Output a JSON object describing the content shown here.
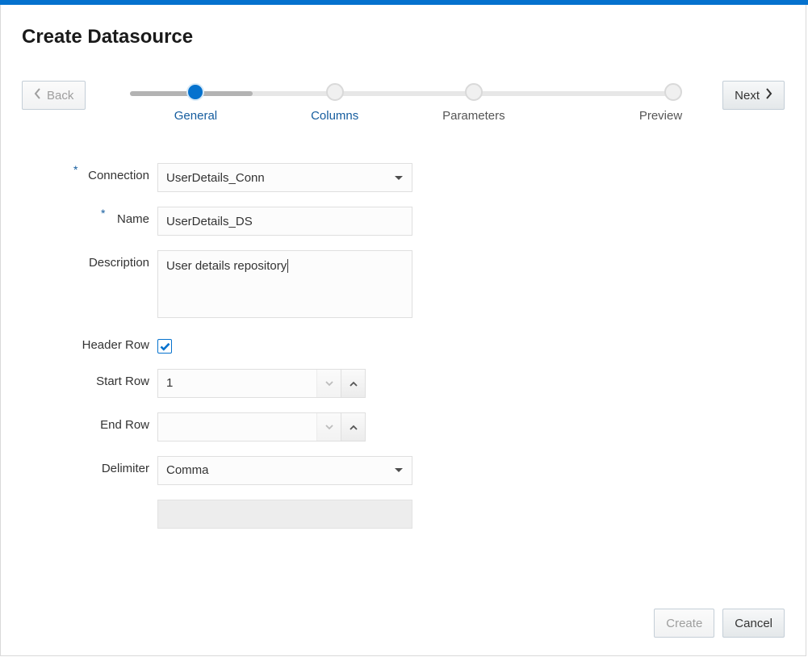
{
  "colors": {
    "accent": "#0572ce",
    "link": "#145c9e",
    "border": "#d9d9d9",
    "field_border": "#dfdfdf",
    "field_bg": "#fcfcfc",
    "track": "#e7e7e7",
    "track_fill": "#b3b3b3",
    "btn_border": "#c4ced7",
    "disabled_text": "#9e9e9e"
  },
  "page_title": "Create Datasource",
  "nav": {
    "back_label": "Back",
    "next_label": "Next"
  },
  "stepper": {
    "active_index": 0,
    "progress_fill_percent": 22,
    "steps": [
      {
        "label": "General"
      },
      {
        "label": "Columns"
      },
      {
        "label": "Parameters"
      },
      {
        "label": "Preview"
      }
    ]
  },
  "form": {
    "connection": {
      "label": "Connection",
      "required": true,
      "value": "UserDetails_Conn"
    },
    "name": {
      "label": "Name",
      "required": true,
      "value": "UserDetails_DS"
    },
    "description": {
      "label": "Description",
      "value": "User details repository"
    },
    "header_row": {
      "label": "Header Row",
      "checked": true
    },
    "start_row": {
      "label": "Start Row",
      "value": "1"
    },
    "end_row": {
      "label": "End Row",
      "value": ""
    },
    "delimiter": {
      "label": "Delimiter",
      "value": "Comma"
    }
  },
  "footer": {
    "create_label": "Create",
    "cancel_label": "Cancel"
  }
}
